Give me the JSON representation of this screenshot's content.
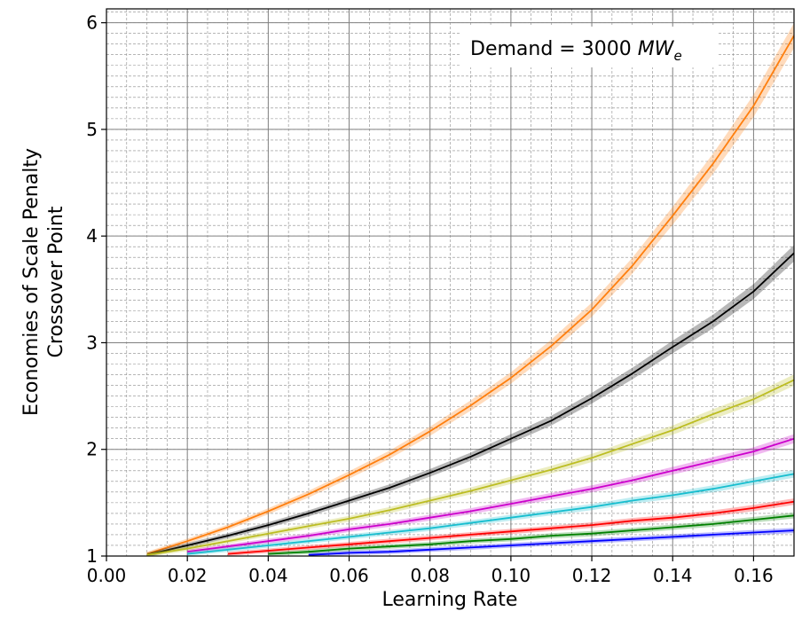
{
  "chart_data": {
    "type": "line",
    "xlabel": "Learning Rate",
    "ylabel_lines": [
      "Economies of Scale Penalty",
      "Crossover Point"
    ],
    "annotation": {
      "prefix": "Demand = 3000 ",
      "var": "MW",
      "sub": "e"
    },
    "xlim": [
      0.0,
      0.17
    ],
    "ylim": [
      1.0,
      6.13
    ],
    "x_ticks": [
      0.0,
      0.02,
      0.04,
      0.06,
      0.08,
      0.1,
      0.12,
      0.14,
      0.16
    ],
    "x_tick_labels": [
      "0.00",
      "0.02",
      "0.04",
      "0.06",
      "0.08",
      "0.10",
      "0.12",
      "0.14",
      "0.16"
    ],
    "y_ticks": [
      1,
      2,
      3,
      4,
      5,
      6
    ],
    "y_tick_labels": [
      "1",
      "2",
      "3",
      "4",
      "5",
      "6"
    ],
    "grid": {
      "major": true,
      "minor": true,
      "minor_x_step": 0.005,
      "minor_y_step": 0.1
    },
    "band_halfwidth_fraction": 0.02,
    "series": [
      {
        "color": "#ff7f0e",
        "x": [
          0.01,
          0.02,
          0.03,
          0.04,
          0.05,
          0.06,
          0.07,
          0.08,
          0.09,
          0.1,
          0.11,
          0.12,
          0.13,
          0.14,
          0.15,
          0.16,
          0.17
        ],
        "y": [
          1.02,
          1.14,
          1.27,
          1.42,
          1.58,
          1.76,
          1.95,
          2.17,
          2.41,
          2.67,
          2.97,
          3.31,
          3.72,
          4.19,
          4.68,
          5.22,
          5.88
        ]
      },
      {
        "color": "#000000",
        "x": [
          0.01,
          0.02,
          0.03,
          0.04,
          0.05,
          0.06,
          0.07,
          0.08,
          0.09,
          0.1,
          0.11,
          0.12,
          0.13,
          0.14,
          0.15,
          0.16,
          0.17
        ],
        "y": [
          1.01,
          1.1,
          1.19,
          1.29,
          1.4,
          1.52,
          1.64,
          1.78,
          1.93,
          2.1,
          2.27,
          2.48,
          2.71,
          2.96,
          3.2,
          3.48,
          3.84
        ]
      },
      {
        "color": "#bcbd22",
        "x": [
          0.01,
          0.02,
          0.03,
          0.04,
          0.05,
          0.06,
          0.07,
          0.08,
          0.09,
          0.1,
          0.11,
          0.12,
          0.13,
          0.14,
          0.15,
          0.16,
          0.17
        ],
        "y": [
          1.01,
          1.07,
          1.14,
          1.21,
          1.28,
          1.35,
          1.43,
          1.52,
          1.61,
          1.71,
          1.81,
          1.92,
          2.05,
          2.18,
          2.33,
          2.47,
          2.65
        ]
      },
      {
        "color": "#cc00cc",
        "x": [
          0.02,
          0.03,
          0.04,
          0.05,
          0.06,
          0.07,
          0.08,
          0.09,
          0.1,
          0.11,
          0.12,
          0.13,
          0.14,
          0.15,
          0.16,
          0.17
        ],
        "y": [
          1.04,
          1.09,
          1.14,
          1.19,
          1.25,
          1.3,
          1.36,
          1.42,
          1.49,
          1.56,
          1.63,
          1.71,
          1.8,
          1.89,
          1.98,
          2.1
        ]
      },
      {
        "color": "#17becf",
        "x": [
          0.02,
          0.03,
          0.04,
          0.05,
          0.06,
          0.07,
          0.08,
          0.09,
          0.1,
          0.11,
          0.12,
          0.13,
          0.14,
          0.15,
          0.16,
          0.17
        ],
        "y": [
          1.02,
          1.06,
          1.1,
          1.14,
          1.18,
          1.22,
          1.26,
          1.31,
          1.36,
          1.41,
          1.46,
          1.52,
          1.57,
          1.63,
          1.7,
          1.77
        ]
      },
      {
        "color": "#ff0000",
        "x": [
          0.03,
          0.04,
          0.05,
          0.06,
          0.07,
          0.08,
          0.09,
          0.1,
          0.11,
          0.12,
          0.13,
          0.14,
          0.15,
          0.16,
          0.17
        ],
        "y": [
          1.02,
          1.05,
          1.08,
          1.11,
          1.14,
          1.17,
          1.2,
          1.23,
          1.26,
          1.29,
          1.33,
          1.36,
          1.4,
          1.45,
          1.51
        ]
      },
      {
        "color": "#008000",
        "x": [
          0.04,
          0.05,
          0.06,
          0.07,
          0.08,
          0.09,
          0.1,
          0.11,
          0.12,
          0.13,
          0.14,
          0.15,
          0.16,
          0.17
        ],
        "y": [
          1.02,
          1.04,
          1.07,
          1.09,
          1.11,
          1.14,
          1.16,
          1.19,
          1.21,
          1.24,
          1.27,
          1.3,
          1.34,
          1.38
        ]
      },
      {
        "color": "#0000ff",
        "x": [
          0.05,
          0.06,
          0.07,
          0.08,
          0.09,
          0.1,
          0.11,
          0.12,
          0.13,
          0.14,
          0.15,
          0.16,
          0.17
        ],
        "y": [
          1.01,
          1.03,
          1.04,
          1.06,
          1.08,
          1.1,
          1.12,
          1.14,
          1.16,
          1.18,
          1.2,
          1.22,
          1.24
        ]
      }
    ]
  }
}
